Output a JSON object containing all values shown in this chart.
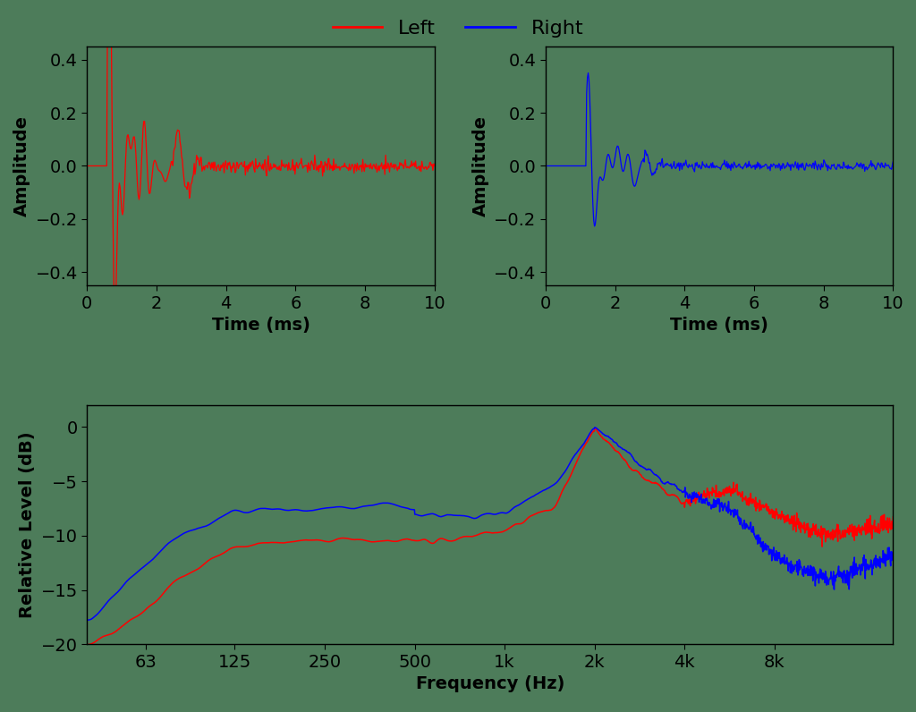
{
  "background_color": "#4d7c5a",
  "left_color": "#ff0000",
  "right_color": "#0000ff",
  "time_xlim": [
    0,
    10
  ],
  "time_ylim": [
    -0.45,
    0.45
  ],
  "time_yticks": [
    -0.4,
    -0.2,
    0.0,
    0.2,
    0.4
  ],
  "time_xlabel": "Time (ms)",
  "time_ylabel": "Amplitude",
  "freq_ylim": [
    -20,
    2
  ],
  "freq_yticks": [
    -20,
    -15,
    -10,
    -5,
    0
  ],
  "freq_xlabel": "Frequency (Hz)",
  "freq_ylabel": "Relative Level (dB)",
  "legend_left": "Left",
  "legend_right": "Right",
  "freq_ticks": [
    63,
    125,
    250,
    500,
    1000,
    2000,
    4000,
    8000
  ],
  "freq_tick_labels": [
    "63",
    "125",
    "250",
    "500",
    "1k",
    "2k",
    "4k",
    "8k"
  ],
  "font_size": 14,
  "label_font_size": 16,
  "sr": 44100,
  "n_hrir": 512
}
